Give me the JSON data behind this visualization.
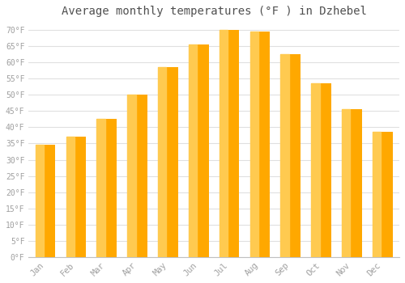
{
  "title": "Average monthly temperatures (°F ) in Dzhebel",
  "months": [
    "Jan",
    "Feb",
    "Mar",
    "Apr",
    "May",
    "Jun",
    "Jul",
    "Aug",
    "Sep",
    "Oct",
    "Nov",
    "Dec"
  ],
  "values": [
    34.5,
    37.0,
    42.5,
    50.0,
    58.5,
    65.5,
    70.0,
    69.5,
    62.5,
    53.5,
    45.5,
    38.5
  ],
  "bar_color_main": "#FFA800",
  "bar_color_light": "#FFCA50",
  "background_color": "#FFFFFF",
  "grid_color": "#E0E0E0",
  "text_color": "#A0A0A0",
  "title_color": "#505050",
  "ylim": [
    0,
    72
  ],
  "yticks": [
    0,
    5,
    10,
    15,
    20,
    25,
    30,
    35,
    40,
    45,
    50,
    55,
    60,
    65,
    70
  ],
  "ylabel_suffix": "°F"
}
